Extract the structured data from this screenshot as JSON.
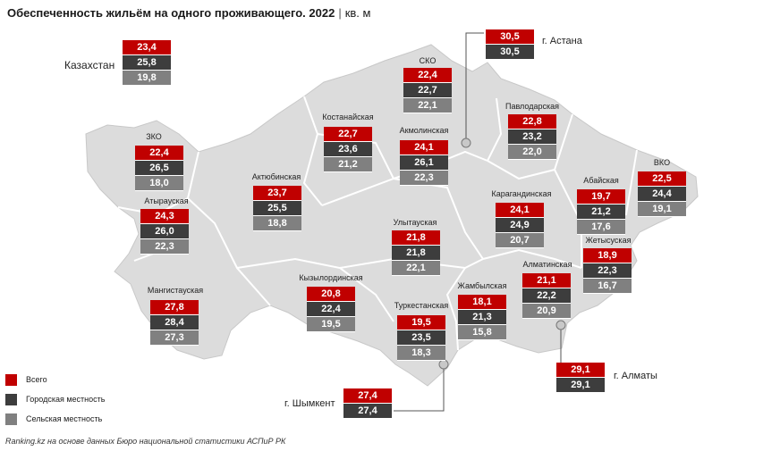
{
  "title": {
    "main": "Обеспеченность жильём на одного проживающего. 2022",
    "separator": "|",
    "unit": "кв. м"
  },
  "colors": {
    "total": "#c00000",
    "urban": "#3d3d3d",
    "rural": "#808080",
    "map_fill": "#dcdcdc",
    "map_border": "#ffffff",
    "leader_line": "#555555"
  },
  "legend": {
    "total": "Всего",
    "urban": "Городская местность",
    "rural": "Сельская местность"
  },
  "kazakhstan": {
    "name": "Казахстан",
    "total": "23,4",
    "urban": "25,8",
    "rural": "19,8"
  },
  "regions": [
    {
      "name": "СКО",
      "total": "22,4",
      "urban": "22,7",
      "rural": "22,1"
    },
    {
      "name": "Костанайская",
      "total": "22,7",
      "urban": "23,6",
      "rural": "21,2"
    },
    {
      "name": "Акмолинская",
      "total": "24,1",
      "urban": "26,1",
      "rural": "22,3"
    },
    {
      "name": "Павлодарская",
      "total": "22,8",
      "urban": "23,2",
      "rural": "22,0"
    },
    {
      "name": "ЗКО",
      "total": "22,4",
      "urban": "26,5",
      "rural": "18,0"
    },
    {
      "name": "Актюбинская",
      "total": "23,7",
      "urban": "25,5",
      "rural": "18,8"
    },
    {
      "name": "Атырауская",
      "total": "24,3",
      "urban": "26,0",
      "rural": "22,3"
    },
    {
      "name": "ВКО",
      "total": "22,5",
      "urban": "24,4",
      "rural": "19,1"
    },
    {
      "name": "Абайская",
      "total": "19,7",
      "urban": "21,2",
      "rural": "17,6"
    },
    {
      "name": "Карагандинская",
      "total": "24,1",
      "urban": "24,9",
      "rural": "20,7"
    },
    {
      "name": "Улытауская",
      "total": "21,8",
      "urban": "21,8",
      "rural": "22,1"
    },
    {
      "name": "Жетысуская",
      "total": "18,9",
      "urban": "22,3",
      "rural": "16,7"
    },
    {
      "name": "Алматинская",
      "total": "21,1",
      "urban": "22,2",
      "rural": "20,9"
    },
    {
      "name": "Мангистауская",
      "total": "27,8",
      "urban": "28,4",
      "rural": "27,3"
    },
    {
      "name": "Кызылординская",
      "total": "20,8",
      "urban": "22,4",
      "rural": "19,5"
    },
    {
      "name": "Жамбылская",
      "total": "18,1",
      "urban": "21,3",
      "rural": "15,8"
    },
    {
      "name": "Туркестанская",
      "total": "19,5",
      "urban": "23,5",
      "rural": "18,3"
    }
  ],
  "cities": [
    {
      "name": "г. Астана",
      "total": "30,5",
      "urban": "30,5"
    },
    {
      "name": "г. Шымкент",
      "total": "27,4",
      "urban": "27,4"
    },
    {
      "name": "г. Алматы",
      "total": "29,1",
      "urban": "29,1"
    }
  ],
  "footer": "Ranking.kz на основе данных Бюро национальной статистики АСПиР РК"
}
